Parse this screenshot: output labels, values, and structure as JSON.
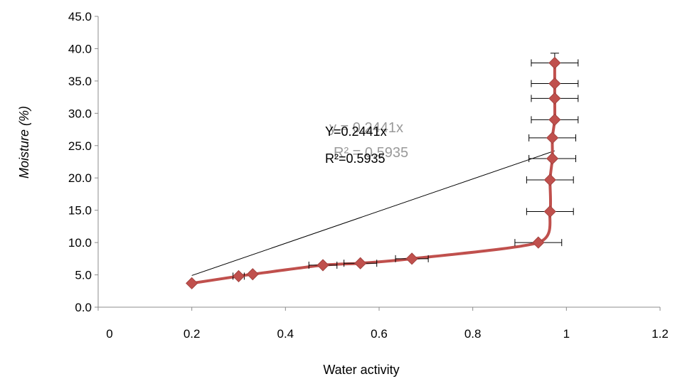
{
  "chart_data": {
    "type": "scatter",
    "xlabel": "Water activity",
    "ylabel": "Moisture (%)",
    "xlim": [
      0,
      1.2
    ],
    "ylim": [
      0,
      45
    ],
    "x_ticks": [
      "0",
      "0.2",
      "0.4",
      "0.6",
      "0.8",
      "1",
      "1.2"
    ],
    "y_ticks": [
      "0.0",
      "5.0",
      "10.0",
      "15.0",
      "20.0",
      "25.0",
      "30.0",
      "35.0",
      "40.0",
      "45.0"
    ],
    "grid": false,
    "legend": "none",
    "series_color": "#c0504d",
    "marker_color": "#c0504d",
    "trendline_color": "#000000",
    "points": [
      {
        "x": 0.2,
        "y": 3.7,
        "xerr": 0.0
      },
      {
        "x": 0.3,
        "y": 4.8,
        "xerr": 0.012
      },
      {
        "x": 0.33,
        "y": 5.1,
        "xerr": 0.0
      },
      {
        "x": 0.48,
        "y": 6.5,
        "xerr": 0.03
      },
      {
        "x": 0.56,
        "y": 6.8,
        "xerr": 0.035
      },
      {
        "x": 0.67,
        "y": 7.5,
        "xerr": 0.035
      },
      {
        "x": 0.94,
        "y": 10.0,
        "xerr": 0.05
      },
      {
        "x": 0.965,
        "y": 14.8,
        "xerr": 0.05
      },
      {
        "x": 0.965,
        "y": 19.7,
        "xerr": 0.05
      },
      {
        "x": 0.97,
        "y": 23.0,
        "xerr": 0.05
      },
      {
        "x": 0.97,
        "y": 26.2,
        "xerr": 0.05
      },
      {
        "x": 0.975,
        "y": 29.0,
        "xerr": 0.05
      },
      {
        "x": 0.975,
        "y": 32.3,
        "xerr": 0.05
      },
      {
        "x": 0.975,
        "y": 34.6,
        "xerr": 0.05
      },
      {
        "x": 0.975,
        "y": 37.8,
        "xerr": 0.05
      }
    ],
    "yerr_top": 1.5,
    "trendline": {
      "x1": 0.2,
      "y1": 4.9,
      "x2": 0.975,
      "y2": 24.2
    },
    "annotations": {
      "equation_ghost": "y = 0.2441x",
      "r2_ghost": "R² = 0.5935",
      "equation": "Y=0.2441x",
      "r2": "R²=0.5935"
    }
  }
}
